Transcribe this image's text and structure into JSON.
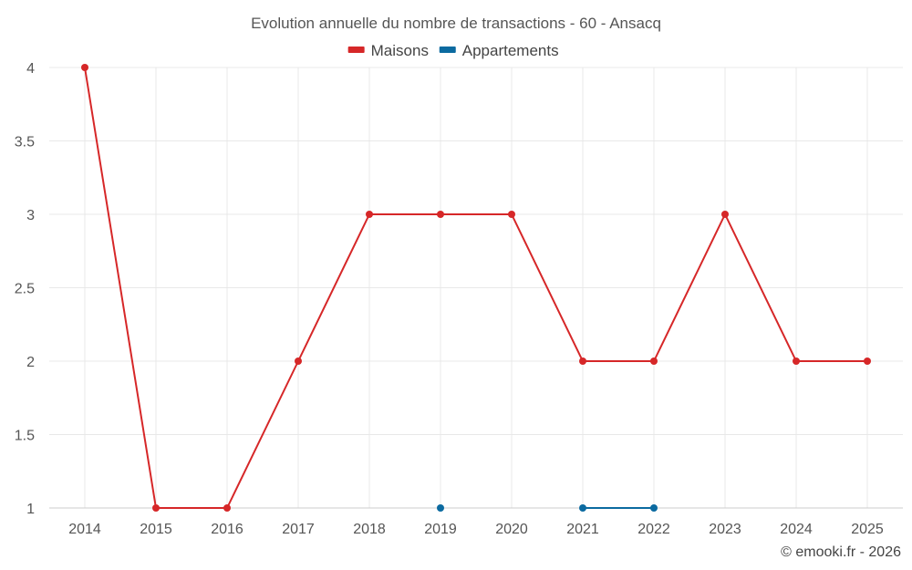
{
  "chart_data": {
    "type": "line",
    "title": "Evolution annuelle du nombre de transactions - 60 - Ansacq",
    "xlabel": "",
    "ylabel": "",
    "categories": [
      "2014",
      "2015",
      "2016",
      "2017",
      "2018",
      "2019",
      "2020",
      "2021",
      "2022",
      "2023",
      "2024",
      "2025"
    ],
    "ylim": [
      1,
      4
    ],
    "yticks": [
      1,
      1.5,
      2,
      2.5,
      3,
      3.5,
      4
    ],
    "ytick_labels": [
      "1",
      "1.5",
      "2",
      "2.5",
      "3",
      "3.5",
      "4"
    ],
    "grid": true,
    "legend_position": "top-center",
    "series": [
      {
        "name": "Maisons",
        "color": "#d62728",
        "values": [
          4,
          1,
          1,
          2,
          3,
          3,
          3,
          2,
          2,
          3,
          2,
          2
        ]
      },
      {
        "name": "Appartements",
        "color": "#0b6aa0",
        "values": [
          null,
          null,
          null,
          null,
          null,
          1,
          null,
          1,
          1,
          null,
          null,
          null
        ]
      }
    ]
  },
  "credit": "© emooki.fr - 2026"
}
